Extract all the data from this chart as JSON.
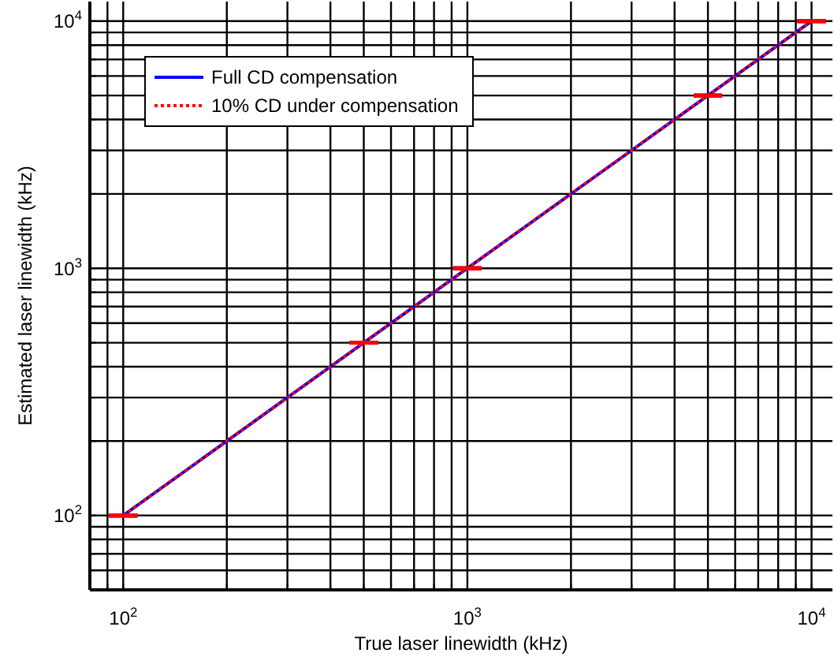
{
  "chart_data": {
    "type": "line",
    "xlabel": "True laser linewidth (kHz)",
    "ylabel": "Estimated laser linewidth (kHz)",
    "x": [
      100,
      500,
      1000,
      5000,
      10000
    ],
    "series": [
      {
        "name": "Full CD compensation",
        "color": "#0000ff",
        "line_style": "solid",
        "values": [
          100,
          500,
          1000,
          5000,
          10000
        ],
        "errors": [
          0,
          0,
          0,
          0,
          0
        ]
      },
      {
        "name": "10% CD under compensation",
        "color": "#ff0000",
        "line_style": "dotted",
        "values": [
          100,
          500,
          1000,
          5000,
          10000
        ],
        "errors": [
          0,
          0,
          0,
          0,
          0
        ]
      }
    ],
    "log": "xy",
    "xlim": [
      80,
      11500
    ],
    "ylim": [
      50,
      12000
    ],
    "xticks": [
      {
        "value": 80,
        "label": null
      },
      {
        "value": 90,
        "label": null
      },
      {
        "value": 100,
        "label": "10$^{2}$"
      },
      {
        "value": 200,
        "label": null
      },
      {
        "value": 300,
        "label": null
      },
      {
        "value": 400,
        "label": null
      },
      {
        "value": 500,
        "label": null
      },
      {
        "value": 600,
        "label": null
      },
      {
        "value": 700,
        "label": null
      },
      {
        "value": 800,
        "label": null
      },
      {
        "value": 900,
        "label": null
      },
      {
        "value": 1000,
        "label": "10$^{3}$"
      },
      {
        "value": 2000,
        "label": null
      },
      {
        "value": 3000,
        "label": null
      },
      {
        "value": 4000,
        "label": null
      },
      {
        "value": 5000,
        "label": null
      },
      {
        "value": 6000,
        "label": null
      },
      {
        "value": 7000,
        "label": null
      },
      {
        "value": 8000,
        "label": null
      },
      {
        "value": 9000,
        "label": null
      },
      {
        "value": 10000,
        "label": "10$^{4}$"
      }
    ],
    "yticks": [
      {
        "value": 50,
        "label": null
      },
      {
        "value": 60,
        "label": null
      },
      {
        "value": 70,
        "label": null
      },
      {
        "value": 80,
        "label": null
      },
      {
        "value": 90,
        "label": null
      },
      {
        "value": 100,
        "label": "10$^{2}$"
      },
      {
        "value": 200,
        "label": null
      },
      {
        "value": 300,
        "label": null
      },
      {
        "value": 400,
        "label": null
      },
      {
        "value": 500,
        "label": null
      },
      {
        "value": 600,
        "label": null
      },
      {
        "value": 700,
        "label": null
      },
      {
        "value": 800,
        "label": null
      },
      {
        "value": 900,
        "label": null
      },
      {
        "value": 1000,
        "label": "10$^{3}$"
      },
      {
        "value": 2000,
        "label": null
      },
      {
        "value": 3000,
        "label": null
      },
      {
        "value": 4000,
        "label": null
      },
      {
        "value": 5000,
        "label": null
      },
      {
        "value": 6000,
        "label": null
      },
      {
        "value": 7000,
        "label": null
      },
      {
        "value": 8000,
        "label": null
      },
      {
        "value": 9000,
        "label": null
      },
      {
        "value": 10000,
        "label": "10$^{4}$"
      }
    ],
    "grid": true,
    "legend": "top left",
    "marker": "none"
  }
}
